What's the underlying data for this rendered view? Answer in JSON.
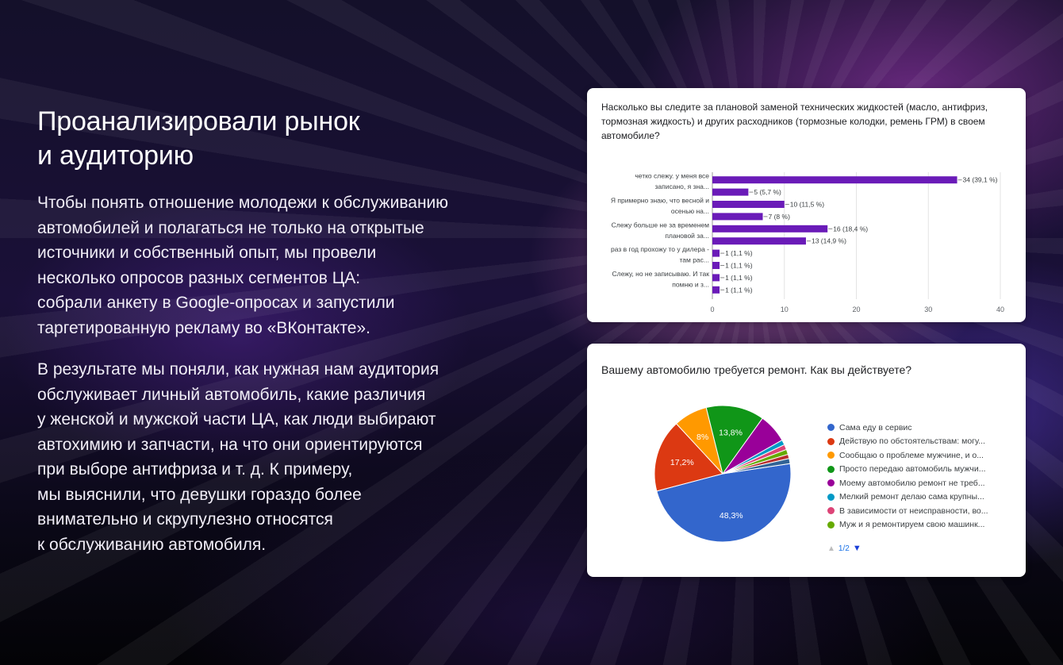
{
  "heading": {
    "line1": "Проанализировали рынок",
    "line2": "и аудиторию"
  },
  "paragraphs": {
    "p1": [
      "Чтобы понять отношение молодежи к обслуживанию",
      "автомобилей и полагаться не только на открытые",
      "источники и собственный опыт, мы провели",
      "несколько опросов разных сегментов ЦА:",
      "собрали анкету в Google-опросах и запустили",
      "таргетированную рекламу во «ВКонтакте»."
    ],
    "p2": [
      "В результате мы поняли, как нужная нам аудитория",
      "обслуживает личный автомобиль, какие различия",
      "у женской и мужской части ЦА, как люди выбирают",
      "автохимию и запчасти, на что они ориентируются",
      "при выборе антифриза и т. д. К примеру,",
      "мы выяснили, что девушки гораздо более",
      "внимательно и скрупулезно относятся",
      "к обслуживанию автомобиля."
    ]
  },
  "chart_data": [
    {
      "type": "bar",
      "orientation": "horizontal",
      "title": "Насколько вы следите за плановой заменой технических жидкостей (масло, антифриз, тормозная жидкость) и других расходников (тормозные колодки, ремень ГРМ) в своем автомобиле?",
      "categories": [
        [
          "четко слежу. у меня все",
          "записано, я зна..."
        ],
        [],
        [
          "Я примерно знаю, что весной и",
          "осенью на..."
        ],
        [],
        [
          "Слежу больше не за временем",
          "плановой за..."
        ],
        [],
        [
          "раз в год прохожу то у дилера -",
          "там рас..."
        ],
        [],
        [
          "Слежу, но не записываю. И так",
          "помню и з..."
        ],
        []
      ],
      "values": [
        34,
        5,
        10,
        7,
        16,
        13,
        1,
        1,
        1,
        1
      ],
      "data_labels": [
        "34 (39,1 %)",
        "5 (5,7 %)",
        "10 (11,5 %)",
        "7 (8 %)",
        "16 (18,4 %)",
        "13 (14,9 %)",
        "1 (1,1 %)",
        "1 (1,1 %)",
        "1 (1,1 %)",
        "1 (1,1 %)"
      ],
      "xlim": [
        0,
        40
      ],
      "x_ticks": [
        "0",
        "10",
        "20",
        "30",
        "40"
      ],
      "bar_color": "#6a1bb8",
      "grid": true
    },
    {
      "type": "pie",
      "title": "Вашему автомобилю требуется ремонт. Как вы действуете?",
      "legend_position": "right",
      "slices": [
        {
          "label": "Сама еду в сервис",
          "value": 48.3,
          "color": "#3366cc",
          "text": "48,3%"
        },
        {
          "label": "Действую по обстоятельствам: могу...",
          "value": 17.2,
          "color": "#dc3912",
          "text": "17,2%"
        },
        {
          "label": "Сообщаю о проблеме мужчине, и о...",
          "value": 8.0,
          "color": "#ff9900",
          "text": "8%"
        },
        {
          "label": "Просто передаю автомобиль мужчи...",
          "value": 13.8,
          "color": "#109618",
          "text": "13,8%"
        },
        {
          "label": "Моему автомобилю ремонт не треб...",
          "value": 6.9,
          "color": "#990099",
          "text": ""
        },
        {
          "label": "Мелкий ремонт делаю сама крупны...",
          "value": 1.2,
          "color": "#0099c6",
          "text": ""
        },
        {
          "label": "В зависимости от неисправности, во...",
          "value": 1.2,
          "color": "#dd4477",
          "text": ""
        },
        {
          "label": "Муж и я ремонтируем свою машинк...",
          "value": 1.2,
          "color": "#66aa00",
          "text": ""
        },
        {
          "value": 1.0,
          "color": "#b82e2e",
          "text": ""
        },
        {
          "value": 1.2,
          "color": "#316395",
          "text": ""
        }
      ],
      "pager": {
        "up_icon": "triangle-up-icon",
        "page": "1/2",
        "down_icon": "triangle-down-icon"
      }
    }
  ]
}
